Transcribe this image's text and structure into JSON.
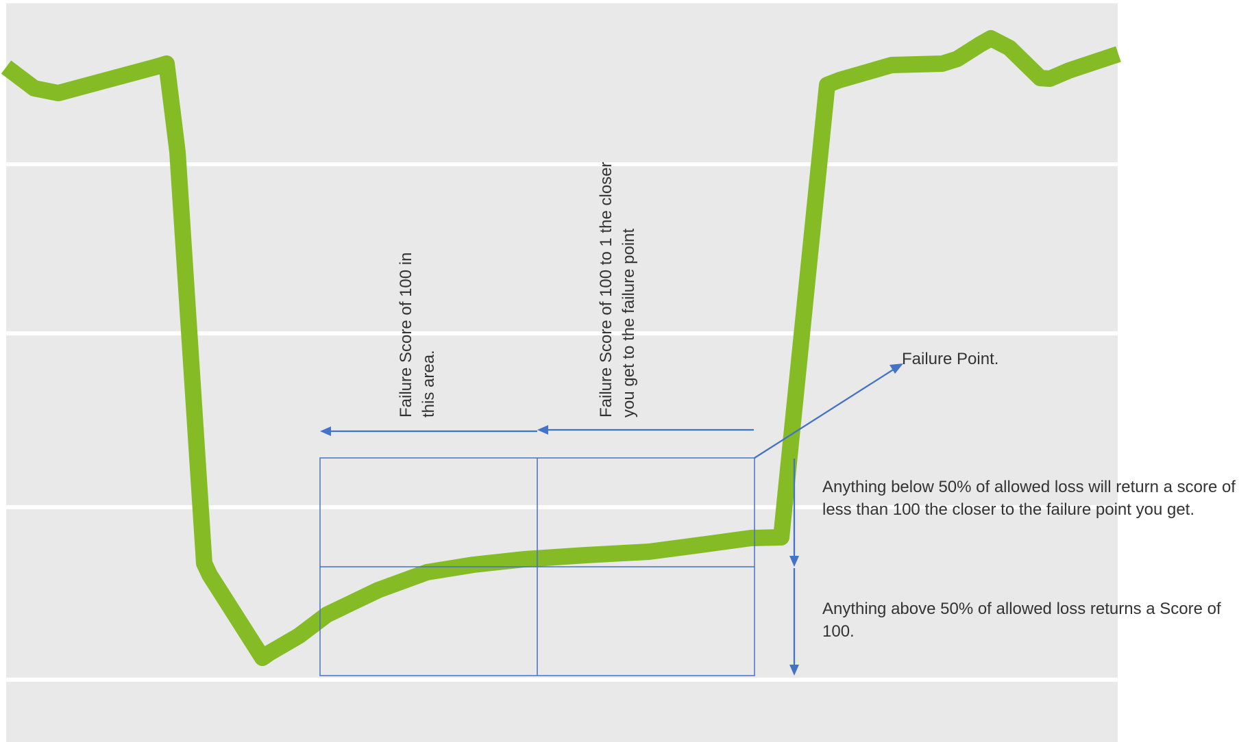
{
  "annotations": {
    "failure_point": "Failure Point.",
    "zone_100": [
      "Failure Score of 100 in",
      "this area."
    ],
    "zone_scaled": [
      "Failure Score of 100 to 1 the closer",
      "you get to the failure point"
    ],
    "below_50": [
      "Anything below 50% of allowed loss will return a score of",
      "less than 100 the closer to the failure point you get."
    ],
    "above_50": [
      "Anything above 50% of allowed loss returns a Score of",
      "100."
    ]
  },
  "colors": {
    "curve": "#85bc26",
    "annotation_lines": "#4472c4",
    "background": "#e9e9e9",
    "gridlines": "#ffffff",
    "text": "#333333"
  }
}
